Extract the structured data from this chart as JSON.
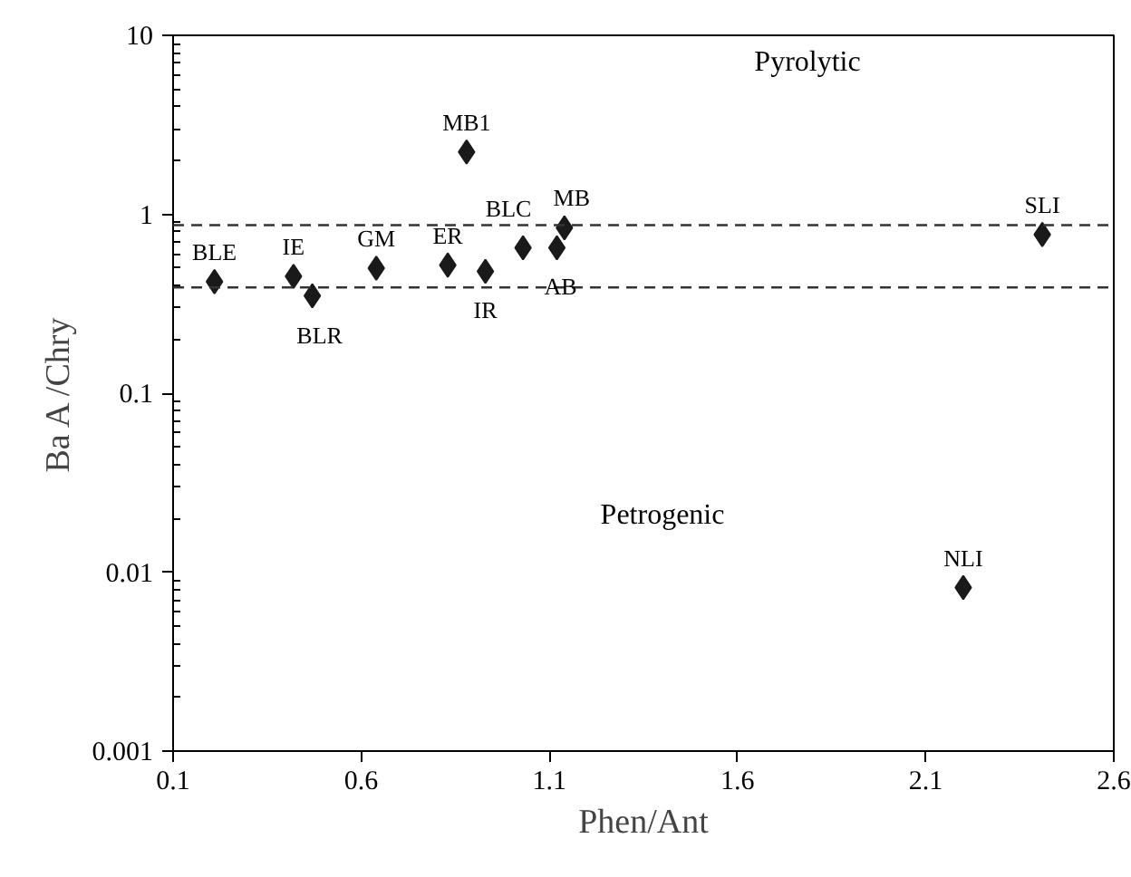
{
  "chart_data": {
    "type": "scatter",
    "xlabel": "Phen/Ant",
    "ylabel": "Ba A /Chry",
    "log": "y",
    "grid": false,
    "marker": "diamond",
    "xlim": [
      0.1,
      2.6
    ],
    "xticks": [
      0.1,
      0.6,
      1.1,
      1.6,
      2.1,
      2.6
    ],
    "ylim": [
      0.001,
      10
    ],
    "yticks": [
      {
        "value": 0.001,
        "label": "0.001"
      },
      {
        "value": 0.01,
        "label": "0.01"
      },
      {
        "value": 0.1,
        "label": "0.1"
      },
      {
        "value": 1,
        "label": "1"
      },
      {
        "value": 10,
        "label": "10"
      }
    ],
    "x": [
      0.21,
      0.42,
      0.47,
      0.64,
      0.83,
      0.93,
      1.03,
      1.12,
      1.14,
      0.88,
      2.41,
      2.2
    ],
    "series": [
      {
        "color": "#1a1a1a",
        "values": [
          0.42,
          0.45,
          0.35,
          0.5,
          0.52,
          0.48,
          0.65,
          0.65,
          0.84,
          2.23,
          0.77,
          0.0082
        ]
      }
    ],
    "ref_lines": [
      {
        "axis": "y",
        "value": 0.87,
        "color": "#333333",
        "line_style": "dashed"
      },
      {
        "axis": "y",
        "value": 0.39,
        "color": "#333333",
        "line_style": "dashed"
      }
    ],
    "annotations": [
      {
        "text": "BLE",
        "x": 0.21,
        "y": 0.42
      },
      {
        "text": "IE",
        "x": 0.42,
        "y": 0.45
      },
      {
        "text": "BLR",
        "x": 0.47,
        "y": 0.35
      },
      {
        "text": "GM",
        "x": 0.64,
        "y": 0.5
      },
      {
        "text": "ER",
        "x": 0.83,
        "y": 0.52
      },
      {
        "text": "IR",
        "x": 0.93,
        "y": 0.48
      },
      {
        "text": "BLC",
        "x": 1.03,
        "y": 0.65
      },
      {
        "text": "AB",
        "x": 1.12,
        "y": 0.65
      },
      {
        "text": "MB",
        "x": 1.14,
        "y": 0.84
      },
      {
        "text": "MB1",
        "x": 0.88,
        "y": 2.23
      },
      {
        "text": "SLI",
        "x": 2.41,
        "y": 0.77
      },
      {
        "text": "NLI",
        "x": 2.2,
        "y": 0.0082
      },
      "Pyrolytic",
      "Petrogenic"
    ]
  }
}
